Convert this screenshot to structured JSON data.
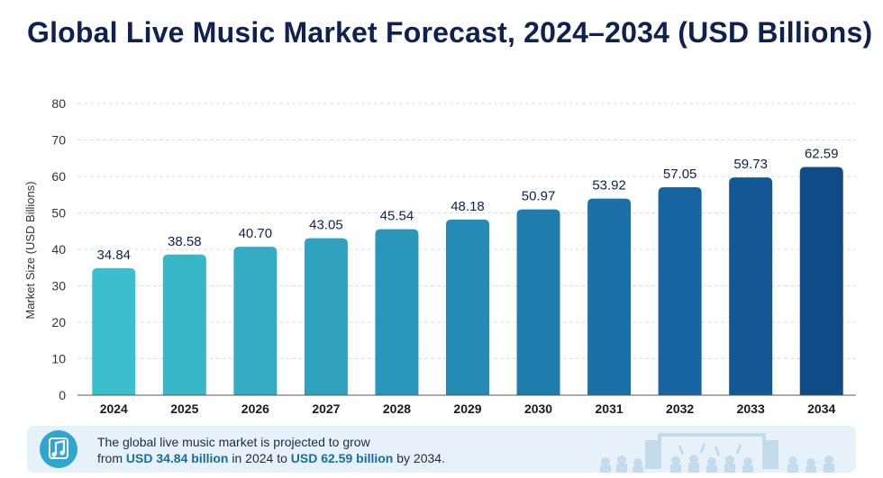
{
  "title": "Global Live Music Market Forecast, 2024–2034 (USD Billions)",
  "chart_data": {
    "type": "bar",
    "title": "Global Live Music Market Forecast, 2024–2034 (USD Billions)",
    "xlabel": "",
    "ylabel": "Market Size (USD Billions)",
    "categories": [
      "2024",
      "2025",
      "2026",
      "2027",
      "2028",
      "2029",
      "2030",
      "2031",
      "2032",
      "2033",
      "2034"
    ],
    "values": [
      34.84,
      38.58,
      40.7,
      43.05,
      45.54,
      48.18,
      50.97,
      53.92,
      57.05,
      59.73,
      62.59
    ],
    "value_labels": [
      "34.84",
      "38.58",
      "40.70",
      "43.05",
      "45.54",
      "48.18",
      "50.97",
      "53.92",
      "57.05",
      "59.73",
      "62.59"
    ],
    "ylim": [
      0,
      80
    ],
    "yticks": [
      0,
      10,
      20,
      30,
      40,
      50,
      60,
      70,
      80
    ],
    "grid": true,
    "colors": [
      "#3cbfcc",
      "#38b6c8",
      "#34acc3",
      "#2fa2bf",
      "#2a96b9",
      "#258ab4",
      "#1f7dae",
      "#1b70a8",
      "#1764a0",
      "#135895",
      "#0f4b87"
    ]
  },
  "banner": {
    "line1": "The global live music market is projected to grow",
    "from_label": "from",
    "start_value": "USD 34.84 billion",
    "mid_label": "in 2024 to",
    "end_value": "USD 62.59 billion",
    "end_label": "by 2034.",
    "icon": "music-note-icon",
    "decoration": "concert-crowd-illustration",
    "accent": "#2fa6cf"
  }
}
